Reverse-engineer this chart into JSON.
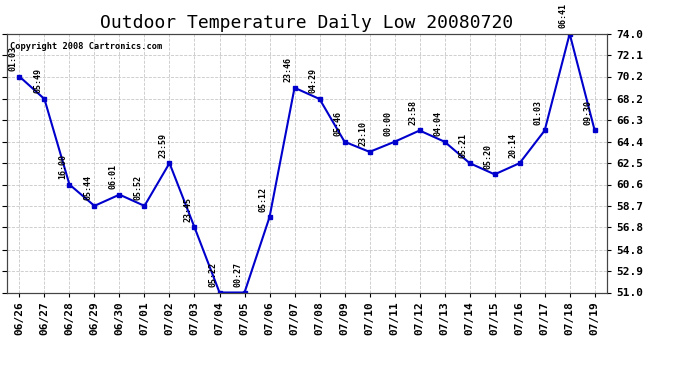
{
  "title": "Outdoor Temperature Daily Low 20080720",
  "copyright": "Copyright 2008 Cartronics.com",
  "background_color": "#ffffff",
  "line_color": "#0000cc",
  "grid_color": "#c8c8c8",
  "dates": [
    "06/26",
    "06/27",
    "06/28",
    "06/29",
    "06/30",
    "07/01",
    "07/02",
    "07/03",
    "07/04",
    "07/05",
    "07/06",
    "07/07",
    "07/08",
    "07/09",
    "07/10",
    "07/11",
    "07/12",
    "07/13",
    "07/14",
    "07/15",
    "07/16",
    "07/17",
    "07/18",
    "07/19"
  ],
  "values": [
    70.2,
    68.2,
    60.6,
    58.7,
    59.7,
    58.7,
    62.5,
    56.8,
    51.0,
    51.0,
    57.7,
    69.2,
    68.2,
    64.4,
    63.5,
    64.4,
    65.4,
    64.4,
    62.5,
    61.5,
    62.5,
    65.4,
    74.0,
    65.4
  ],
  "time_labels": [
    "01:03",
    "05:49",
    "16:00",
    "05:44",
    "06:01",
    "05:52",
    "23:59",
    "23:45",
    "05:22",
    "00:27",
    "05:12",
    "23:46",
    "04:29",
    "05:46",
    "23:10",
    "00:00",
    "23:58",
    "04:04",
    "05:21",
    "05:20",
    "20:14",
    "01:03",
    "06:41",
    "09:30"
  ],
  "ylim": [
    51.0,
    74.0
  ],
  "yticks": [
    51.0,
    52.9,
    54.8,
    56.8,
    58.7,
    60.6,
    62.5,
    64.4,
    66.3,
    68.2,
    70.2,
    72.1,
    74.0
  ],
  "title_fontsize": 13,
  "label_fontsize": 7,
  "tick_fontsize": 8
}
